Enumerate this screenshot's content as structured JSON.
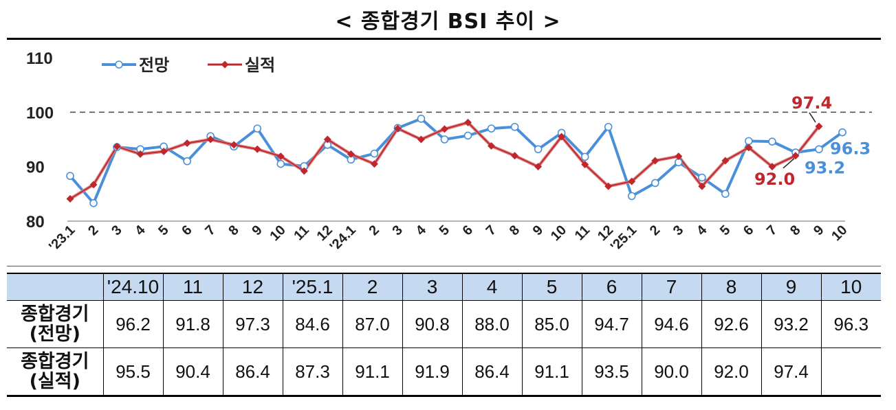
{
  "title": "< 종합경기 BSI 추이 >",
  "chart_data": {
    "type": "line",
    "ylim": [
      80,
      110
    ],
    "yticks": [
      "80",
      "90",
      "100",
      "110"
    ],
    "reference_line": 100,
    "categories": [
      "'23.1",
      "2",
      "3",
      "4",
      "5",
      "6",
      "7",
      "8",
      "9",
      "10",
      "11",
      "12",
      "'24.1",
      "2",
      "3",
      "4",
      "5",
      "6",
      "7",
      "8",
      "9",
      "10",
      "11",
      "12",
      "'25.1",
      "2",
      "3",
      "4",
      "5",
      "6",
      "7",
      "8",
      "9",
      "10"
    ],
    "series": [
      {
        "name": "전망",
        "color": "#4a90d9",
        "values": [
          88.3,
          83.3,
          93.6,
          93.2,
          93.7,
          91.0,
          95.6,
          93.7,
          97.0,
          90.5,
          90.1,
          94.0,
          91.3,
          92.4,
          97.1,
          98.8,
          95.0,
          95.7,
          97.0,
          97.3,
          93.2,
          96.2,
          91.8,
          97.3,
          84.6,
          87.0,
          90.8,
          88.0,
          85.0,
          94.7,
          94.6,
          92.6,
          93.2,
          96.3
        ]
      },
      {
        "name": "실적",
        "color": "#c0272d",
        "values": [
          84.1,
          86.7,
          93.7,
          92.3,
          92.8,
          94.3,
          95.0,
          94.0,
          93.2,
          91.9,
          89.2,
          95.0,
          92.3,
          90.5,
          97.0,
          95.0,
          96.9,
          98.1,
          93.8,
          92.0,
          90.0,
          95.5,
          90.4,
          86.4,
          87.3,
          91.1,
          91.9,
          86.4,
          91.1,
          93.5,
          90.0,
          92.0,
          97.4,
          null
        ]
      }
    ],
    "annotations": [
      {
        "text": "97.4",
        "series": "실적",
        "color": "#c0272d"
      },
      {
        "text": "92.0",
        "series": "실적",
        "color": "#c0272d"
      },
      {
        "text": "93.2",
        "series": "전망",
        "color": "#4a90d9"
      },
      {
        "text": "96.3",
        "series": "전망",
        "color": "#4a90d9"
      }
    ]
  },
  "table": {
    "headers": [
      "",
      "'24.10",
      "11",
      "12",
      "'25.1",
      "2",
      "3",
      "4",
      "5",
      "6",
      "7",
      "8",
      "9",
      "10"
    ],
    "rows": [
      {
        "label1": "종합경기",
        "label2": "(전망)",
        "values": [
          "96.2",
          "91.8",
          "97.3",
          "84.6",
          "87.0",
          "90.8",
          "88.0",
          "85.0",
          "94.7",
          "94.6",
          "92.6",
          "93.2",
          "96.3"
        ]
      },
      {
        "label1": "종합경기",
        "label2": "(실적)",
        "values": [
          "95.5",
          "90.4",
          "86.4",
          "87.3",
          "91.1",
          "91.9",
          "86.4",
          "91.1",
          "93.5",
          "90.0",
          "92.0",
          "97.4",
          ""
        ]
      }
    ]
  }
}
